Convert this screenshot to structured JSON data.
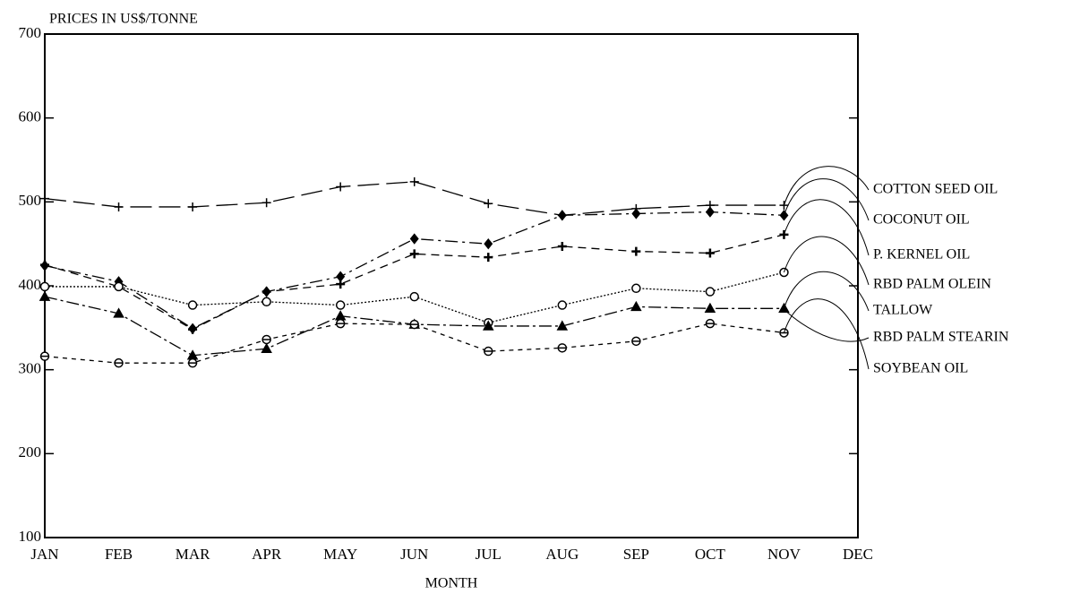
{
  "chart_data": {
    "type": "line",
    "y_label": "PRICES IN US$/TONNE",
    "x_label": "MONTH",
    "categories": [
      "JAN",
      "FEB",
      "MAR",
      "APR",
      "MAY",
      "JUN",
      "JUL",
      "AUG",
      "SEP",
      "OCT",
      "NOV",
      "DEC"
    ],
    "ylim": [
      100,
      700
    ],
    "yticks": [
      100,
      200,
      300,
      400,
      500,
      600,
      700
    ],
    "grid": false,
    "series": [
      {
        "name": "COTTON SEED OIL",
        "color": "#000000",
        "values": [
          504,
          494,
          494,
          499,
          518,
          524,
          498,
          484,
          492,
          496,
          496,
          null
        ]
      },
      {
        "name": "COCONUT OIL",
        "color": "#000000",
        "values": [
          424,
          405,
          349,
          393,
          411,
          456,
          450,
          484,
          486,
          488,
          484,
          null
        ]
      },
      {
        "name": "P. KERNEL OIL",
        "color": "#000000",
        "values": [
          425,
          399,
          348,
          393,
          402,
          438,
          434,
          447,
          441,
          439,
          461,
          null
        ]
      },
      {
        "name": "RBD PALM OLEIN",
        "color": "#000000",
        "values": [
          399,
          399,
          377,
          381,
          377,
          387,
          356,
          377,
          397,
          393,
          416,
          null
        ]
      },
      {
        "name": "TALLOW",
        "color": "#000000",
        "values": [
          387,
          367,
          317,
          325,
          364,
          354,
          352,
          352,
          375,
          373,
          373,
          null
        ]
      },
      {
        "name": "SOYBEAN OIL",
        "color": "#000000",
        "values": [
          316,
          308,
          308,
          336,
          355,
          354,
          322,
          326,
          334,
          355,
          344,
          null
        ]
      }
    ],
    "annotations": [
      "RBD PALM STEARIN"
    ]
  }
}
